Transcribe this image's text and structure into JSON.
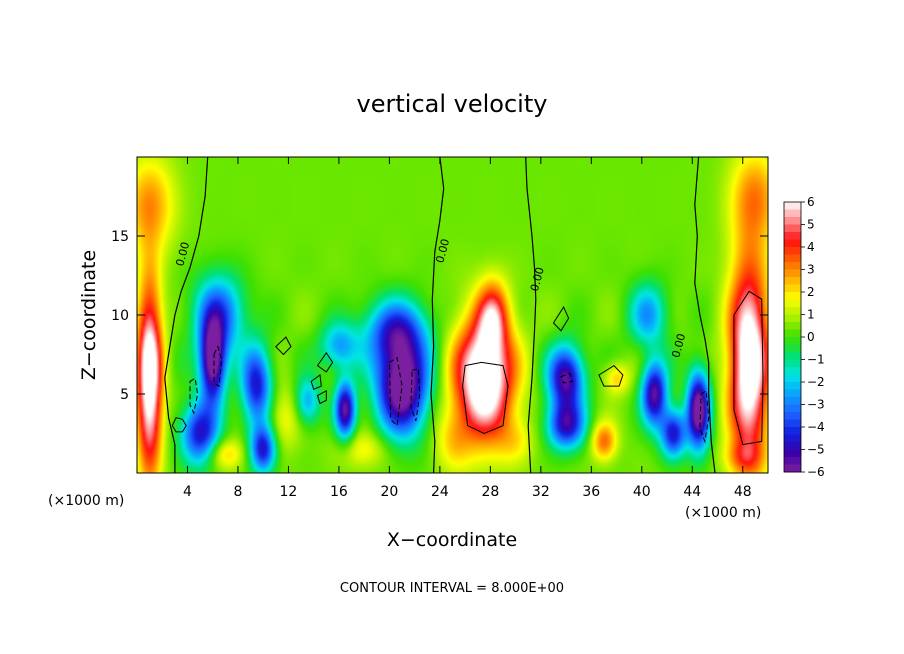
{
  "chart_data": {
    "type": "heatmap",
    "title": "vertical velocity",
    "xlabel": "X−coordinate",
    "ylabel": "Z−coordinate",
    "x_unit_label_left": "(×1000 m)",
    "x_unit_label_right": "(×1000 m)",
    "footnote": "CONTOUR INTERVAL = 8.000E+00",
    "xlim": [
      0,
      50
    ],
    "ylim": [
      0,
      20
    ],
    "x_ticks": [
      4,
      8,
      12,
      16,
      20,
      24,
      28,
      32,
      36,
      40,
      44,
      48
    ],
    "x_tick_labels": [
      "4",
      "8",
      "12",
      "16",
      "20",
      "24",
      "28",
      "32",
      "36",
      "40",
      "44",
      "48"
    ],
    "y_ticks": [
      5,
      10,
      15
    ],
    "y_tick_labels": [
      "5",
      "10",
      "15"
    ],
    "contour_labels": [
      {
        "text": "0.00",
        "x": 3.9,
        "z": 13.8
      },
      {
        "text": "0.00",
        "x": 24.5,
        "z": 14.0
      },
      {
        "text": "0.00",
        "x": 32.0,
        "z": 12.2
      },
      {
        "text": "0.00",
        "x": 43.2,
        "z": 8.0
      }
    ],
    "colorbar": {
      "min": -6,
      "max": 6,
      "tick_labels": [
        "6",
        "5",
        "4",
        "3",
        "2",
        "1",
        "0",
        "−1",
        "−2",
        "−3",
        "−4",
        "−5",
        "−6"
      ],
      "colors": [
        "#7a1fa0",
        "#3a00aa",
        "#1020e0",
        "#1e60ff",
        "#0aa0ff",
        "#00e5e5",
        "#00e070",
        "#40e000",
        "#a8f000",
        "#ffff00",
        "#ffb000",
        "#ff6000",
        "#ff1010",
        "#ff8a8a",
        "#ffffff"
      ]
    },
    "features": [
      {
        "x": 1.0,
        "z": 6.0,
        "w": 3.2,
        "amp": 7,
        "sx": 1.0,
        "sz": 6.0
      },
      {
        "x": 48.5,
        "z": 7.0,
        "w": 3.0,
        "amp": 7,
        "sx": 1.6,
        "sz": 6.5
      },
      {
        "x": 27.5,
        "z": 6.0,
        "w": 0,
        "amp": 7.5,
        "sx": 2.3,
        "sz": 3.8
      },
      {
        "x": 28.2,
        "z": 10.0,
        "w": 0,
        "amp": 3.5,
        "sx": 1.2,
        "sz": 2.2
      },
      {
        "x": 21.0,
        "z": 5.5,
        "w": 0,
        "amp": -7.5,
        "sx": 2.0,
        "sz": 3.0
      },
      {
        "x": 20.5,
        "z": 9.0,
        "w": 0,
        "amp": -4,
        "sx": 2.5,
        "sz": 2.0
      },
      {
        "x": 6.0,
        "z": 7.0,
        "w": 0,
        "amp": -7,
        "sx": 1.0,
        "sz": 2.5
      },
      {
        "x": 6.5,
        "z": 10.0,
        "w": 0,
        "amp": -4,
        "sx": 2.0,
        "sz": 2.5
      },
      {
        "x": 5.0,
        "z": 2.5,
        "w": 0,
        "amp": -5,
        "sx": 1.5,
        "sz": 2.0
      },
      {
        "x": 9.5,
        "z": 5.5,
        "w": 0,
        "amp": -5,
        "sx": 1.2,
        "sz": 2.5
      },
      {
        "x": 10.0,
        "z": 1.5,
        "w": 0,
        "amp": -5,
        "sx": 1.0,
        "sz": 1.5
      },
      {
        "x": 13.5,
        "z": 4.5,
        "w": 0,
        "amp": -3,
        "sx": 1.0,
        "sz": 1.5
      },
      {
        "x": 16.5,
        "z": 4.0,
        "w": 0,
        "amp": -6,
        "sx": 0.8,
        "sz": 1.8
      },
      {
        "x": 16.0,
        "z": 8.0,
        "w": 0,
        "amp": -3,
        "sx": 1.5,
        "sz": 1.5
      },
      {
        "x": 34.0,
        "z": 6.0,
        "w": 0,
        "amp": -6,
        "sx": 1.4,
        "sz": 2.0
      },
      {
        "x": 34.0,
        "z": 3.0,
        "w": 0,
        "amp": -5,
        "sx": 1.5,
        "sz": 1.5
      },
      {
        "x": 41.0,
        "z": 5.0,
        "w": 0,
        "amp": -6,
        "sx": 1.0,
        "sz": 2.0
      },
      {
        "x": 40.5,
        "z": 10.0,
        "w": 0,
        "amp": -3,
        "sx": 1.5,
        "sz": 2.0
      },
      {
        "x": 44.5,
        "z": 4.0,
        "w": 0,
        "amp": -7,
        "sx": 0.9,
        "sz": 2.5
      },
      {
        "x": 42.5,
        "z": 2.5,
        "w": 0,
        "amp": -5,
        "sx": 1.0,
        "sz": 1.5
      },
      {
        "x": 37.0,
        "z": 2.0,
        "w": 0,
        "amp": 3,
        "sx": 1.0,
        "sz": 1.2
      },
      {
        "x": 38.0,
        "z": 6.0,
        "w": 0,
        "amp": 2,
        "sx": 1.0,
        "sz": 1.0
      },
      {
        "x": 7.0,
        "z": 1.2,
        "w": 0,
        "amp": 2,
        "sx": 1.5,
        "sz": 1.0
      },
      {
        "x": 11.5,
        "z": 3.5,
        "w": 0,
        "amp": 1.5,
        "sx": 1.5,
        "sz": 2.0
      },
      {
        "x": 1.0,
        "z": 17.0,
        "w": 0,
        "amp": 2.5,
        "sx": 2.0,
        "sz": 3.0
      },
      {
        "x": 49.0,
        "z": 17.5,
        "w": 0,
        "amp": 2.5,
        "sx": 2.0,
        "sz": 3.0
      },
      {
        "x": 25.0,
        "z": 2.0,
        "w": 0,
        "amp": 1.5,
        "sx": 1.5,
        "sz": 2.0
      },
      {
        "x": 30.0,
        "z": 2.0,
        "w": 0,
        "amp": 1.2,
        "sx": 1.5,
        "sz": 1.5
      },
      {
        "x": 18.0,
        "z": 1.5,
        "w": 0,
        "amp": 1.5,
        "sx": 2.0,
        "sz": 1.2
      },
      {
        "x": 48.0,
        "z": 1.0,
        "w": 0,
        "amp": 1.5,
        "sx": 1.5,
        "sz": 1.0
      }
    ],
    "zero_contours": [
      [
        [
          5.6,
          20
        ],
        [
          5.4,
          17.5
        ],
        [
          4.9,
          15
        ],
        [
          4.2,
          13
        ],
        [
          3.5,
          11.5
        ],
        [
          3.0,
          10
        ],
        [
          2.6,
          8
        ],
        [
          2.2,
          6
        ],
        [
          2.5,
          3.5
        ],
        [
          3.0,
          1.8
        ],
        [
          3.0,
          0
        ]
      ],
      [
        [
          24.0,
          20
        ],
        [
          24.3,
          18
        ],
        [
          24.0,
          16
        ],
        [
          23.6,
          14
        ],
        [
          23.4,
          11
        ],
        [
          23.5,
          8
        ],
        [
          23.3,
          5
        ],
        [
          23.6,
          2
        ],
        [
          23.5,
          0
        ]
      ],
      [
        [
          30.8,
          20
        ],
        [
          30.9,
          18
        ],
        [
          31.3,
          15
        ],
        [
          31.5,
          13
        ],
        [
          31.6,
          11
        ],
        [
          31.5,
          9
        ],
        [
          31.3,
          6
        ],
        [
          31.0,
          3
        ],
        [
          31.2,
          0
        ]
      ],
      [
        [
          44.5,
          20
        ],
        [
          44.2,
          17
        ],
        [
          44.4,
          15
        ],
        [
          44.2,
          12
        ],
        [
          44.6,
          10
        ],
        [
          45.0,
          8.5
        ],
        [
          45.3,
          7
        ],
        [
          45.3,
          5
        ],
        [
          45.5,
          2
        ],
        [
          45.8,
          0
        ]
      ]
    ],
    "closed_contours": [
      [
        [
          3.1,
          3.5
        ],
        [
          3.6,
          3.4
        ],
        [
          3.9,
          3.0
        ],
        [
          3.6,
          2.6
        ],
        [
          3.1,
          2.6
        ],
        [
          2.8,
          3.0
        ]
      ],
      [
        [
          25.8,
          5.5
        ],
        [
          26.0,
          6.8
        ],
        [
          27.3,
          7.0
        ],
        [
          29.0,
          6.8
        ],
        [
          29.4,
          5.5
        ],
        [
          29.0,
          3.0
        ],
        [
          27.5,
          2.5
        ],
        [
          26.2,
          3.0
        ]
      ],
      [
        [
          47.3,
          10.0
        ],
        [
          48.5,
          11.5
        ],
        [
          49.5,
          11.0
        ],
        [
          49.6,
          6.0
        ],
        [
          49.5,
          2.0
        ],
        [
          48.0,
          1.8
        ],
        [
          47.3,
          4.0
        ]
      ],
      [
        [
          36.6,
          6.2
        ],
        [
          37.8,
          6.8
        ],
        [
          38.5,
          6.2
        ],
        [
          38.2,
          5.5
        ],
        [
          37.0,
          5.5
        ]
      ],
      [
        [
          14.3,
          6.8
        ],
        [
          15.0,
          7.6
        ],
        [
          15.5,
          7.0
        ],
        [
          15.0,
          6.4
        ]
      ],
      [
        [
          13.8,
          5.8
        ],
        [
          14.5,
          6.2
        ],
        [
          14.6,
          5.5
        ],
        [
          14.0,
          5.3
        ]
      ],
      [
        [
          14.3,
          4.9
        ],
        [
          15.0,
          5.2
        ],
        [
          15.0,
          4.6
        ],
        [
          14.5,
          4.4
        ]
      ],
      [
        [
          11.0,
          8.0
        ],
        [
          11.8,
          8.6
        ],
        [
          12.2,
          8.0
        ],
        [
          11.6,
          7.5
        ]
      ],
      [
        [
          33.0,
          9.5
        ],
        [
          33.8,
          10.5
        ],
        [
          34.2,
          9.8
        ],
        [
          33.6,
          9.0
        ]
      ]
    ],
    "dashed_contours": [
      [
        [
          6.1,
          7.5
        ],
        [
          6.4,
          8.0
        ],
        [
          6.7,
          7.2
        ],
        [
          6.5,
          5.5
        ],
        [
          6.1,
          5.7
        ]
      ],
      [
        [
          4.2,
          5.8
        ],
        [
          4.6,
          6.0
        ],
        [
          4.8,
          5.0
        ],
        [
          4.5,
          3.8
        ],
        [
          4.2,
          4.3
        ]
      ],
      [
        [
          20.0,
          7.0
        ],
        [
          20.6,
          7.3
        ],
        [
          21.0,
          5.5
        ],
        [
          20.6,
          3.0
        ],
        [
          20.1,
          3.4
        ]
      ],
      [
        [
          21.8,
          6.5
        ],
        [
          22.3,
          6.6
        ],
        [
          22.4,
          5.0
        ],
        [
          22.1,
          3.3
        ],
        [
          21.7,
          4.2
        ]
      ],
      [
        [
          44.7,
          5.0
        ],
        [
          45.1,
          5.2
        ],
        [
          45.3,
          3.5
        ],
        [
          45.0,
          2.0
        ],
        [
          44.6,
          2.8
        ]
      ],
      [
        [
          33.6,
          6.1
        ],
        [
          34.3,
          6.3
        ],
        [
          34.5,
          5.8
        ],
        [
          33.8,
          5.7
        ]
      ]
    ]
  }
}
